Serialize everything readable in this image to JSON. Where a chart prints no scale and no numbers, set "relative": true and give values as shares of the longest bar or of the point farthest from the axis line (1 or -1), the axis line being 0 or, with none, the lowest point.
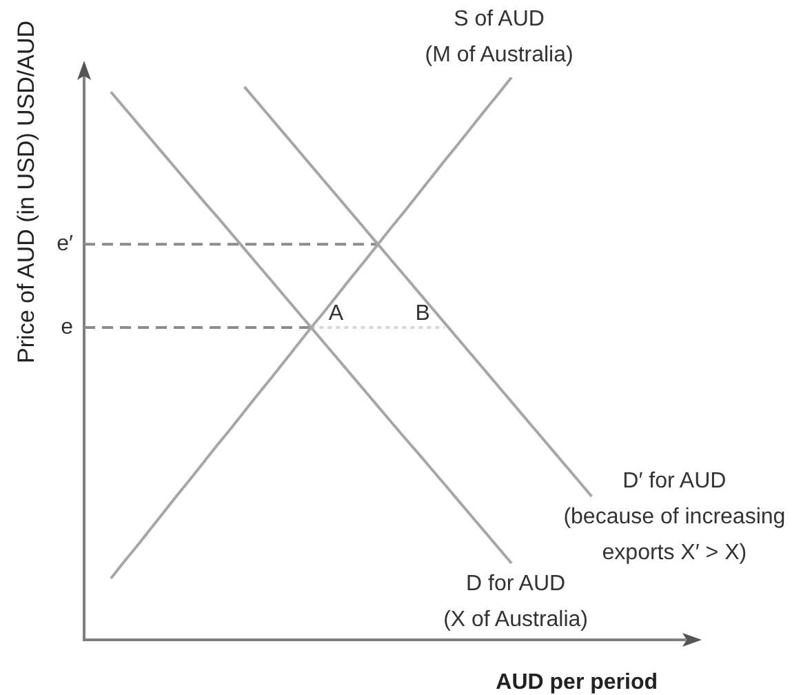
{
  "chart_data": {
    "type": "line",
    "relative": true,
    "ylabel": "Price of AUD (in USD) USD/AUD",
    "xlabel": "AUD per period",
    "legend": false,
    "marker": "none",
    "categories": [
      null,
      null,
      null,
      null,
      null,
      null,
      null,
      null,
      null,
      null,
      null,
      null,
      null,
      null,
      null,
      null,
      null,
      null,
      null,
      null,
      null,
      null,
      null,
      null,
      null,
      null,
      null,
      null,
      null,
      null,
      null,
      null,
      null,
      null,
      null,
      null,
      null,
      null,
      null,
      null,
      null,
      null,
      null,
      null,
      null,
      null
    ],
    "series": [
      {
        "name": "S of AUD\n(M of Australia)",
        "color": "#a6a6a6",
        "values": [
          null,
          null,
          0.109,
          0.139,
          0.168,
          0.198,
          0.228,
          0.258,
          0.287,
          0.317,
          0.347,
          0.376,
          0.406,
          0.436,
          0.465,
          0.495,
          0.525,
          0.555,
          0.584,
          0.614,
          0.644,
          0.673,
          0.703,
          0.733,
          0.762,
          0.792,
          0.822,
          0.852,
          0.881,
          0.911,
          0.941,
          0.97,
          1.0,
          null,
          null,
          null,
          null,
          null,
          null,
          null,
          null,
          null,
          null,
          null,
          null,
          null
        ]
      },
      {
        "name": "D for AUD\n(X of Australia)",
        "color": "#a6a6a6",
        "values": [
          null,
          null,
          0.974,
          0.946,
          0.918,
          0.89,
          0.862,
          0.834,
          0.806,
          0.778,
          0.751,
          0.723,
          0.695,
          0.667,
          0.639,
          0.611,
          0.583,
          0.555,
          0.527,
          0.499,
          0.471,
          0.443,
          0.415,
          0.387,
          0.359,
          0.332,
          0.304,
          0.276,
          0.248,
          0.22,
          0.192,
          0.164,
          0.136,
          null,
          null,
          null,
          null,
          null,
          null,
          null,
          null,
          null,
          null,
          null,
          null,
          null
        ]
      },
      {
        "name": "D′ for AUD\n(because of increasing\nexports X′ > X)",
        "color": "#a6a6a6",
        "values": [
          null,
          null,
          null,
          null,
          null,
          null,
          null,
          null,
          null,
          null,
          null,
          null,
          0.983,
          0.955,
          0.927,
          0.899,
          0.871,
          0.843,
          0.815,
          0.787,
          0.759,
          0.731,
          0.703,
          0.675,
          0.647,
          0.619,
          0.591,
          0.563,
          0.535,
          0.507,
          0.479,
          0.451,
          0.423,
          0.395,
          0.367,
          0.339,
          0.311,
          0.283,
          0.255,
          null,
          null,
          null,
          null,
          null,
          null,
          null
        ]
      },
      {
        "color": "#8c8c8c",
        "line_style": "dashed",
        "values": [
          0.555,
          0.555,
          0.555,
          0.555,
          0.555,
          0.555,
          0.555,
          0.555,
          0.555,
          0.555,
          0.555,
          0.555,
          0.555,
          0.555,
          0.555,
          0.555,
          0.555,
          0.555,
          null,
          null,
          null,
          null,
          null,
          null,
          null,
          null,
          null,
          null,
          null,
          null,
          null,
          null,
          null,
          null,
          null,
          null,
          null,
          null,
          null,
          null,
          null,
          null,
          null,
          null,
          null,
          null
        ]
      },
      {
        "color": "#8c8c8c",
        "line_style": "dashed",
        "values": [
          0.703,
          0.703,
          0.703,
          0.703,
          0.703,
          0.703,
          0.703,
          0.703,
          0.703,
          0.703,
          0.703,
          0.703,
          0.703,
          0.703,
          0.703,
          0.703,
          0.703,
          0.703,
          0.703,
          0.703,
          0.703,
          0.703,
          0.703,
          null,
          null,
          null,
          null,
          null,
          null,
          null,
          null,
          null,
          null,
          null,
          null,
          null,
          null,
          null,
          null,
          null,
          null,
          null,
          null,
          null,
          null,
          null
        ]
      },
      {
        "color": "#d9d9d9",
        "line_style": "dotted",
        "values": [
          null,
          null,
          null,
          null,
          null,
          null,
          null,
          null,
          null,
          null,
          null,
          null,
          null,
          null,
          null,
          null,
          null,
          0.555,
          0.555,
          0.555,
          0.555,
          0.555,
          0.555,
          0.555,
          0.555,
          0.555,
          0.555,
          0.555,
          null,
          null,
          null,
          null,
          null,
          null,
          null,
          null,
          null,
          null,
          null,
          null,
          null,
          null,
          null,
          null,
          null,
          null
        ]
      }
    ],
    "annotations": [
      "e",
      "e′",
      {
        "text": "A",
        "y": 0.555
      },
      {
        "text": "B",
        "y": 0.555
      }
    ]
  }
}
